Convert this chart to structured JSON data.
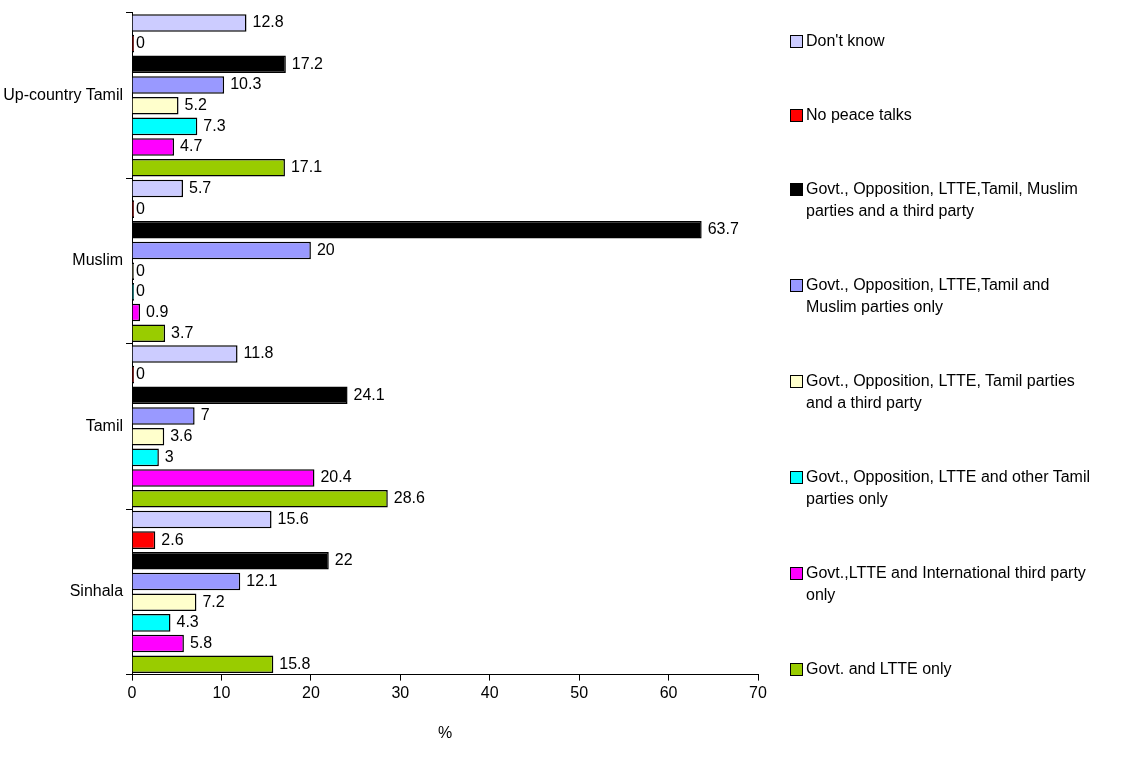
{
  "chart_data": {
    "type": "bar",
    "orientation": "horizontal",
    "xlabel": "%",
    "categories": [
      "Up-country Tamil",
      "Muslim",
      "Tamil",
      "Sinhala"
    ],
    "series": [
      {
        "name": "Don't know",
        "color": "#ccccff",
        "values": [
          12.8,
          5.7,
          11.8,
          15.6
        ]
      },
      {
        "name": "No peace talks",
        "color": "#ff0000",
        "values": [
          0,
          0,
          0,
          2.6
        ]
      },
      {
        "name": "Govt., Opposition, LTTE,Tamil, Muslim parties and a third party",
        "color": "#000000",
        "values": [
          17.2,
          63.7,
          24.1,
          22
        ]
      },
      {
        "name": "Govt., Opposition, LTTE,Tamil and Muslim parties only",
        "color": "#9999ff",
        "values": [
          10.3,
          20,
          7,
          12.1
        ]
      },
      {
        "name": "Govt., Opposition, LTTE, Tamil parties and a third party",
        "color": "#ffffcc",
        "values": [
          5.2,
          0,
          3.6,
          7.2
        ]
      },
      {
        "name": "Govt., Opposition, LTTE and other Tamil parties only",
        "color": "#00ffff",
        "values": [
          7.3,
          0,
          3,
          4.3
        ]
      },
      {
        "name": "Govt.,LTTE and International third party only",
        "color": "#ff00ff",
        "values": [
          4.7,
          0.9,
          20.4,
          5.8
        ]
      },
      {
        "name": "Govt. and LTTE only",
        "color": "#99cc00",
        "values": [
          17.1,
          3.7,
          28.6,
          15.8
        ]
      }
    ],
    "xlim": [
      0,
      70
    ],
    "xticks": [
      0,
      10,
      20,
      30,
      40,
      50,
      60,
      70
    ],
    "data_labels": true,
    "grid": false,
    "legend": "right"
  }
}
